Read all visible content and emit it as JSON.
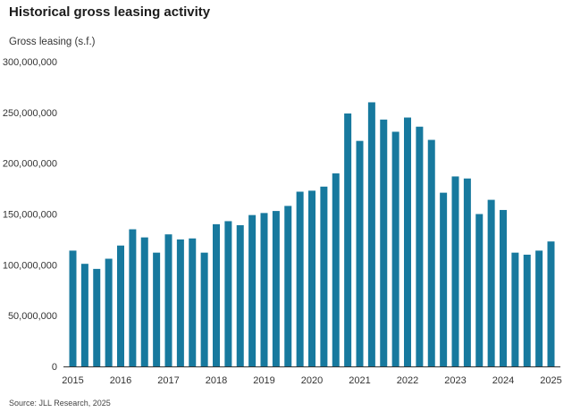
{
  "chart_data": {
    "type": "bar",
    "title": "Historical gross leasing activity",
    "ylabel": "Gross leasing (s.f.)",
    "source": "Source: JLL Research, 2025",
    "ylim": [
      0,
      300000000
    ],
    "yticks": [
      "0",
      "50,000,000",
      "100,000,000",
      "150,000,000",
      "200,000,000",
      "250,000,000",
      "300,000,000"
    ],
    "xticks": [
      "2015",
      "2016",
      "2017",
      "2018",
      "2019",
      "2020",
      "2021",
      "2022",
      "2023",
      "2024",
      "2025"
    ],
    "grid": false,
    "bar_color": "#17799e",
    "values": [
      114000000,
      101000000,
      96000000,
      106000000,
      119000000,
      135000000,
      127000000,
      112000000,
      130000000,
      125000000,
      126000000,
      112000000,
      140000000,
      143000000,
      139000000,
      149000000,
      151000000,
      153000000,
      158000000,
      172000000,
      173000000,
      177000000,
      190000000,
      249000000,
      222000000,
      260000000,
      243000000,
      231000000,
      245000000,
      236000000,
      223000000,
      171000000,
      187000000,
      185000000,
      150000000,
      164000000,
      154000000,
      112000000,
      110000000,
      114000000,
      123000000
    ]
  }
}
